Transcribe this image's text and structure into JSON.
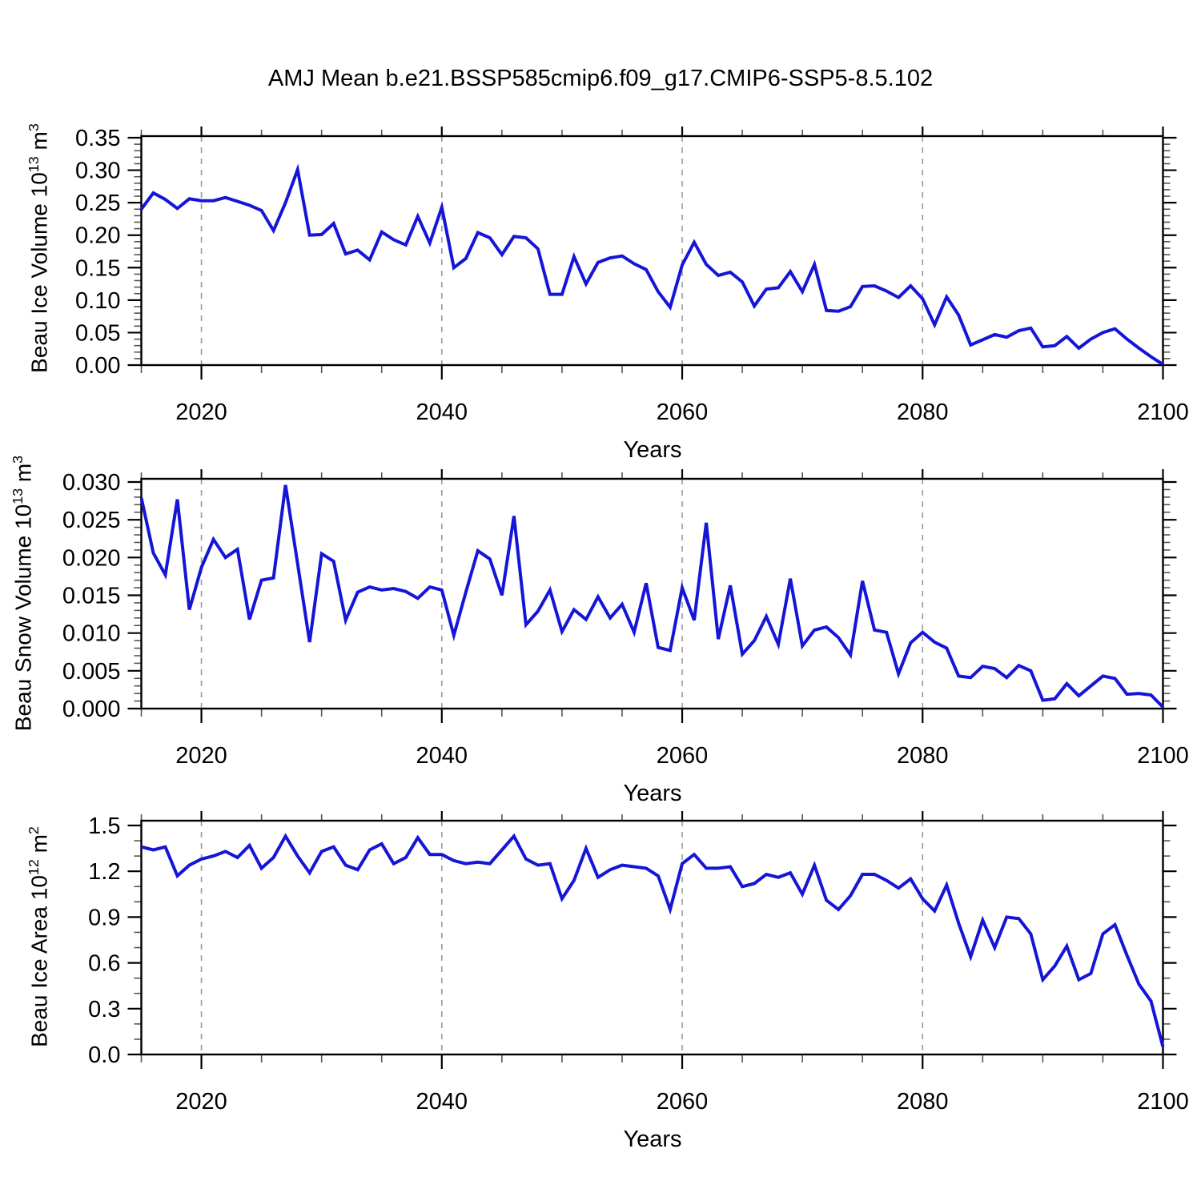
{
  "title": "AMJ Mean b.e21.BSSP585cmip6.f09_g17.CMIP6-SSP5-8.5.102",
  "background_color": "#ffffff",
  "axis_color": "#000000",
  "chart_data": [
    {
      "type": "line",
      "series_name": "Beau Ice Volume",
      "ylabel": "Beau Ice Volume 10^13 m^3",
      "ylabel_parts": {
        "base": "Beau Ice Volume 10",
        "exp": "13",
        "unit": " m",
        "unit_exp": "3"
      },
      "xlabel": "Years",
      "x_range": [
        2015,
        2100
      ],
      "x_step": 1,
      "ylim": [
        0,
        0.35
      ],
      "y_major_ticks": [
        "0.35",
        "0.30",
        "0.25",
        "0.20",
        "0.15",
        "0.10",
        "0.05",
        "0.00"
      ],
      "y_minor_step": 0.01,
      "x_major_ticks": [
        "2020",
        "2040",
        "2060",
        "2080",
        "2100"
      ],
      "x_minor_step": 5,
      "gridlines_x": [
        2020,
        2040,
        2060,
        2080
      ],
      "grid_style": "vertical dashed gray at major x ticks",
      "legend": "none",
      "line_color": "#1515d8",
      "values": [
        0.24,
        0.265,
        0.255,
        0.241,
        0.256,
        0.253,
        0.253,
        0.258,
        0.252,
        0.246,
        0.238,
        0.207,
        0.25,
        0.301,
        0.2,
        0.201,
        0.218,
        0.171,
        0.177,
        0.162,
        0.205,
        0.193,
        0.185,
        0.229,
        0.188,
        0.243,
        0.15,
        0.164,
        0.204,
        0.196,
        0.17,
        0.198,
        0.196,
        0.179,
        0.109,
        0.109,
        0.167,
        0.125,
        0.158,
        0.165,
        0.168,
        0.156,
        0.147,
        0.113,
        0.089,
        0.154,
        0.189,
        0.155,
        0.138,
        0.143,
        0.128,
        0.091,
        0.117,
        0.119,
        0.144,
        0.113,
        0.155,
        0.084,
        0.083,
        0.09,
        0.121,
        0.122,
        0.114,
        0.104,
        0.122,
        0.102,
        0.062,
        0.105,
        0.077,
        0.031,
        0.039,
        0.047,
        0.043,
        0.053,
        0.057,
        0.028,
        0.03,
        0.044,
        0.026,
        0.04,
        0.05,
        0.056,
        0.04,
        0.026,
        0.013,
        0.001
      ]
    },
    {
      "type": "line",
      "series_name": "Beau Snow Volume",
      "ylabel": "Beau Snow Volume 10^13 m^3",
      "ylabel_parts": {
        "base": "Beau Snow Volume 10",
        "exp": "13",
        "unit": " m",
        "unit_exp": "3"
      },
      "xlabel": "Years",
      "x_range": [
        2015,
        2100
      ],
      "x_step": 1,
      "ylim": [
        0,
        0.03
      ],
      "y_major_ticks": [
        "0.030",
        "0.025",
        "0.020",
        "0.015",
        "0.010",
        "0.005",
        "0.000"
      ],
      "y_minor_step": 0.001,
      "x_major_ticks": [
        "2020",
        "2040",
        "2060",
        "2080",
        "2100"
      ],
      "x_minor_step": 5,
      "gridlines_x": [
        2020,
        2040,
        2060,
        2080
      ],
      "grid_style": "vertical dashed gray at major x ticks",
      "legend": "none",
      "line_color": "#1515d8",
      "values": [
        0.0279,
        0.0206,
        0.0177,
        0.0277,
        0.0131,
        0.0187,
        0.0224,
        0.02,
        0.0211,
        0.0118,
        0.017,
        0.0173,
        0.0296,
        0.0192,
        0.0088,
        0.0205,
        0.0195,
        0.0117,
        0.0154,
        0.0161,
        0.0157,
        0.0159,
        0.0155,
        0.0146,
        0.0161,
        0.0157,
        0.0097,
        0.0154,
        0.0209,
        0.0198,
        0.015,
        0.0255,
        0.0111,
        0.0129,
        0.0157,
        0.0102,
        0.0131,
        0.0118,
        0.0148,
        0.012,
        0.0138,
        0.0101,
        0.0166,
        0.0081,
        0.0077,
        0.016,
        0.0117,
        0.0246,
        0.0092,
        0.0163,
        0.0072,
        0.009,
        0.0122,
        0.0085,
        0.0172,
        0.0083,
        0.0104,
        0.0108,
        0.0094,
        0.0071,
        0.0169,
        0.0104,
        0.0101,
        0.0046,
        0.0087,
        0.0101,
        0.0088,
        0.008,
        0.0043,
        0.0041,
        0.0056,
        0.0053,
        0.0041,
        0.0057,
        0.005,
        0.0011,
        0.0013,
        0.0033,
        0.0017,
        0.003,
        0.0043,
        0.004,
        0.0019,
        0.002,
        0.0018,
        0.0002
      ]
    },
    {
      "type": "line",
      "series_name": "Beau Ice Area",
      "ylabel": "Beau Ice Area 10^12 m^2",
      "ylabel_parts": {
        "base": "Beau Ice Area 10",
        "exp": "12",
        "unit": " m",
        "unit_exp": "2"
      },
      "xlabel": "Years",
      "x_range": [
        2015,
        2100
      ],
      "x_step": 1,
      "ylim": [
        0,
        1.5
      ],
      "y_major_ticks": [
        "1.5",
        "1.2",
        "0.9",
        "0.6",
        "0.3",
        "0.0"
      ],
      "y_minor_step": 0.1,
      "x_major_ticks": [
        "2020",
        "2040",
        "2060",
        "2080",
        "2100"
      ],
      "x_minor_step": 5,
      "gridlines_x": [
        2020,
        2040,
        2060,
        2080
      ],
      "grid_style": "vertical dashed gray at major x ticks",
      "legend": "none",
      "line_color": "#1515d8",
      "values": [
        1.36,
        1.34,
        1.36,
        1.17,
        1.24,
        1.28,
        1.3,
        1.33,
        1.29,
        1.37,
        1.22,
        1.29,
        1.43,
        1.3,
        1.19,
        1.33,
        1.36,
        1.24,
        1.21,
        1.34,
        1.38,
        1.25,
        1.29,
        1.42,
        1.31,
        1.31,
        1.27,
        1.25,
        1.26,
        1.25,
        1.34,
        1.43,
        1.28,
        1.24,
        1.25,
        1.02,
        1.14,
        1.35,
        1.16,
        1.21,
        1.24,
        1.23,
        1.22,
        1.17,
        0.95,
        1.25,
        1.31,
        1.22,
        1.22,
        1.23,
        1.1,
        1.12,
        1.18,
        1.16,
        1.19,
        1.05,
        1.24,
        1.01,
        0.95,
        1.04,
        1.18,
        1.18,
        1.14,
        1.09,
        1.15,
        1.02,
        0.94,
        1.11,
        0.86,
        0.64,
        0.88,
        0.7,
        0.9,
        0.89,
        0.79,
        0.49,
        0.58,
        0.71,
        0.49,
        0.53,
        0.79,
        0.85,
        0.65,
        0.46,
        0.35,
        0.05
      ]
    }
  ]
}
